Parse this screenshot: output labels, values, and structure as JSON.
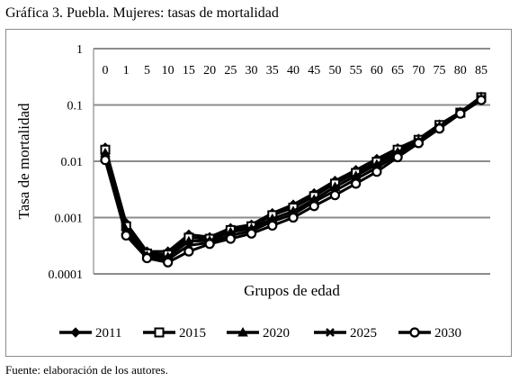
{
  "header": {
    "title": "Gráfica 3. Puebla. Mujeres: tasas de mortalidad"
  },
  "footer": {
    "source": "Fuente: elaboración de los autores."
  },
  "chart_data": {
    "type": "line",
    "title": "",
    "xlabel": "Grupos de edad",
    "ylabel": "Tasa de mortalidad",
    "x_position": "top",
    "y_scale": "log",
    "ylim": [
      0.0001,
      1
    ],
    "y_ticks": [
      "1",
      "0.1",
      "0.01",
      "0.001",
      "0.0001"
    ],
    "grid": true,
    "legend_position": "bottom",
    "categories": [
      "0",
      "1",
      "5",
      "10",
      "15",
      "20",
      "25",
      "30",
      "35",
      "40",
      "45",
      "50",
      "55",
      "60",
      "65",
      "70",
      "75",
      "80",
      "85"
    ],
    "series": [
      {
        "name": "2011",
        "marker": "diamond",
        "color": "#000000",
        "values": [
          0.0175,
          0.0008,
          0.00025,
          0.00025,
          0.0005,
          0.00045,
          0.00065,
          0.00075,
          0.0012,
          0.0017,
          0.0027,
          0.0045,
          0.007,
          0.011,
          0.017,
          0.025,
          0.045,
          0.075,
          0.14
        ]
      },
      {
        "name": "2015",
        "marker": "square",
        "color": "#000000",
        "values": [
          0.016,
          0.0007,
          0.00023,
          0.00022,
          0.00044,
          0.00042,
          0.0006,
          0.0007,
          0.0011,
          0.0015,
          0.0024,
          0.004,
          0.0062,
          0.0098,
          0.016,
          0.024,
          0.044,
          0.073,
          0.137
        ]
      },
      {
        "name": "2020",
        "marker": "triangle",
        "color": "#000000",
        "values": [
          0.014,
          0.0006,
          0.00021,
          0.0002,
          0.00038,
          0.00039,
          0.00055,
          0.00064,
          0.00095,
          0.0013,
          0.0021,
          0.0035,
          0.0055,
          0.0088,
          0.0145,
          0.023,
          0.042,
          0.072,
          0.132
        ]
      },
      {
        "name": "2025",
        "marker": "x",
        "color": "#000000",
        "values": [
          0.012,
          0.00055,
          0.0002,
          0.00018,
          0.00032,
          0.00036,
          0.00048,
          0.00058,
          0.00085,
          0.00115,
          0.0019,
          0.003,
          0.0048,
          0.0077,
          0.013,
          0.022,
          0.04,
          0.071,
          0.127
        ]
      },
      {
        "name": "2030",
        "marker": "circle",
        "color": "#000000",
        "values": [
          0.0105,
          0.00048,
          0.00019,
          0.00016,
          0.00025,
          0.00034,
          0.00042,
          0.00052,
          0.00072,
          0.001,
          0.0016,
          0.0025,
          0.004,
          0.0065,
          0.0118,
          0.021,
          0.038,
          0.07,
          0.122
        ]
      }
    ]
  }
}
